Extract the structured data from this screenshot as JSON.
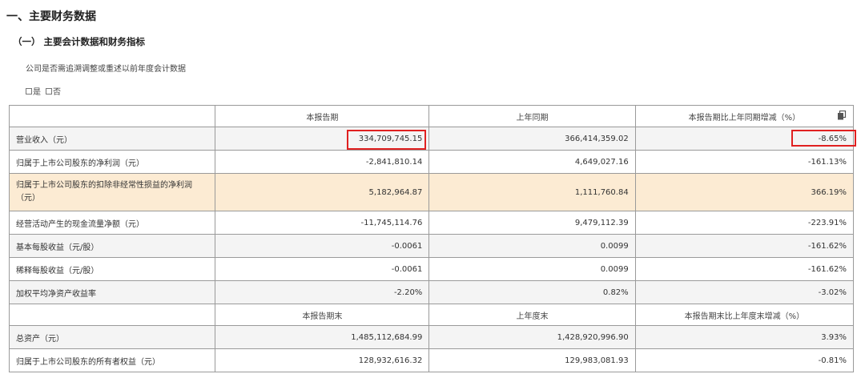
{
  "heading1": "一、主要财务数据",
  "heading2": "（一） 主要会计数据和财务指标",
  "note": "公司是否需追溯调整或重述以前年度会计数据",
  "options": [
    "是",
    "否"
  ],
  "table": {
    "header1": [
      "",
      "本报告期",
      "上年同期",
      "本报告期比上年同期增减（%）"
    ],
    "rows1": [
      {
        "label": "营业收入（元）",
        "current": "334,709,745.15",
        "prior": "366,414,359.02",
        "change": "-8.65%"
      },
      {
        "label": "归属于上市公司股东的净利润（元）",
        "current": "-2,841,810.14",
        "prior": "4,649,027.16",
        "change": "-161.13%"
      },
      {
        "label": "归属于上市公司股东的扣除非经常性损益的净利润（元）",
        "current": "5,182,964.87",
        "prior": "1,111,760.84",
        "change": "366.19%"
      },
      {
        "label": "经营活动产生的现金流量净额（元）",
        "current": "-11,745,114.76",
        "prior": "9,479,112.39",
        "change": "-223.91%"
      },
      {
        "label": "基本每股收益（元/股）",
        "current": "-0.0061",
        "prior": "0.0099",
        "change": "-161.62%"
      },
      {
        "label": "稀释每股收益（元/股）",
        "current": "-0.0061",
        "prior": "0.0099",
        "change": "-161.62%"
      },
      {
        "label": "加权平均净资产收益率",
        "current": "-2.20%",
        "prior": "0.82%",
        "change": "-3.02%"
      }
    ],
    "header2": [
      "",
      "本报告期末",
      "上年度末",
      "本报告期末比上年度末增减（%）"
    ],
    "rows2": [
      {
        "label": "总资产（元）",
        "current": "1,485,112,684.99",
        "prior": "1,428,920,996.90",
        "change": "3.93%"
      },
      {
        "label": "归属于上市公司股东的所有者权益（元）",
        "current": "128,932,616.32",
        "prior": "129,983,081.93",
        "change": "-0.81%"
      }
    ]
  },
  "colors": {
    "highlight_row": "#fcebd3",
    "annotation_box": "#e02020",
    "alt_row": "#f4f4f4"
  },
  "icons": [
    "copy-icon"
  ]
}
